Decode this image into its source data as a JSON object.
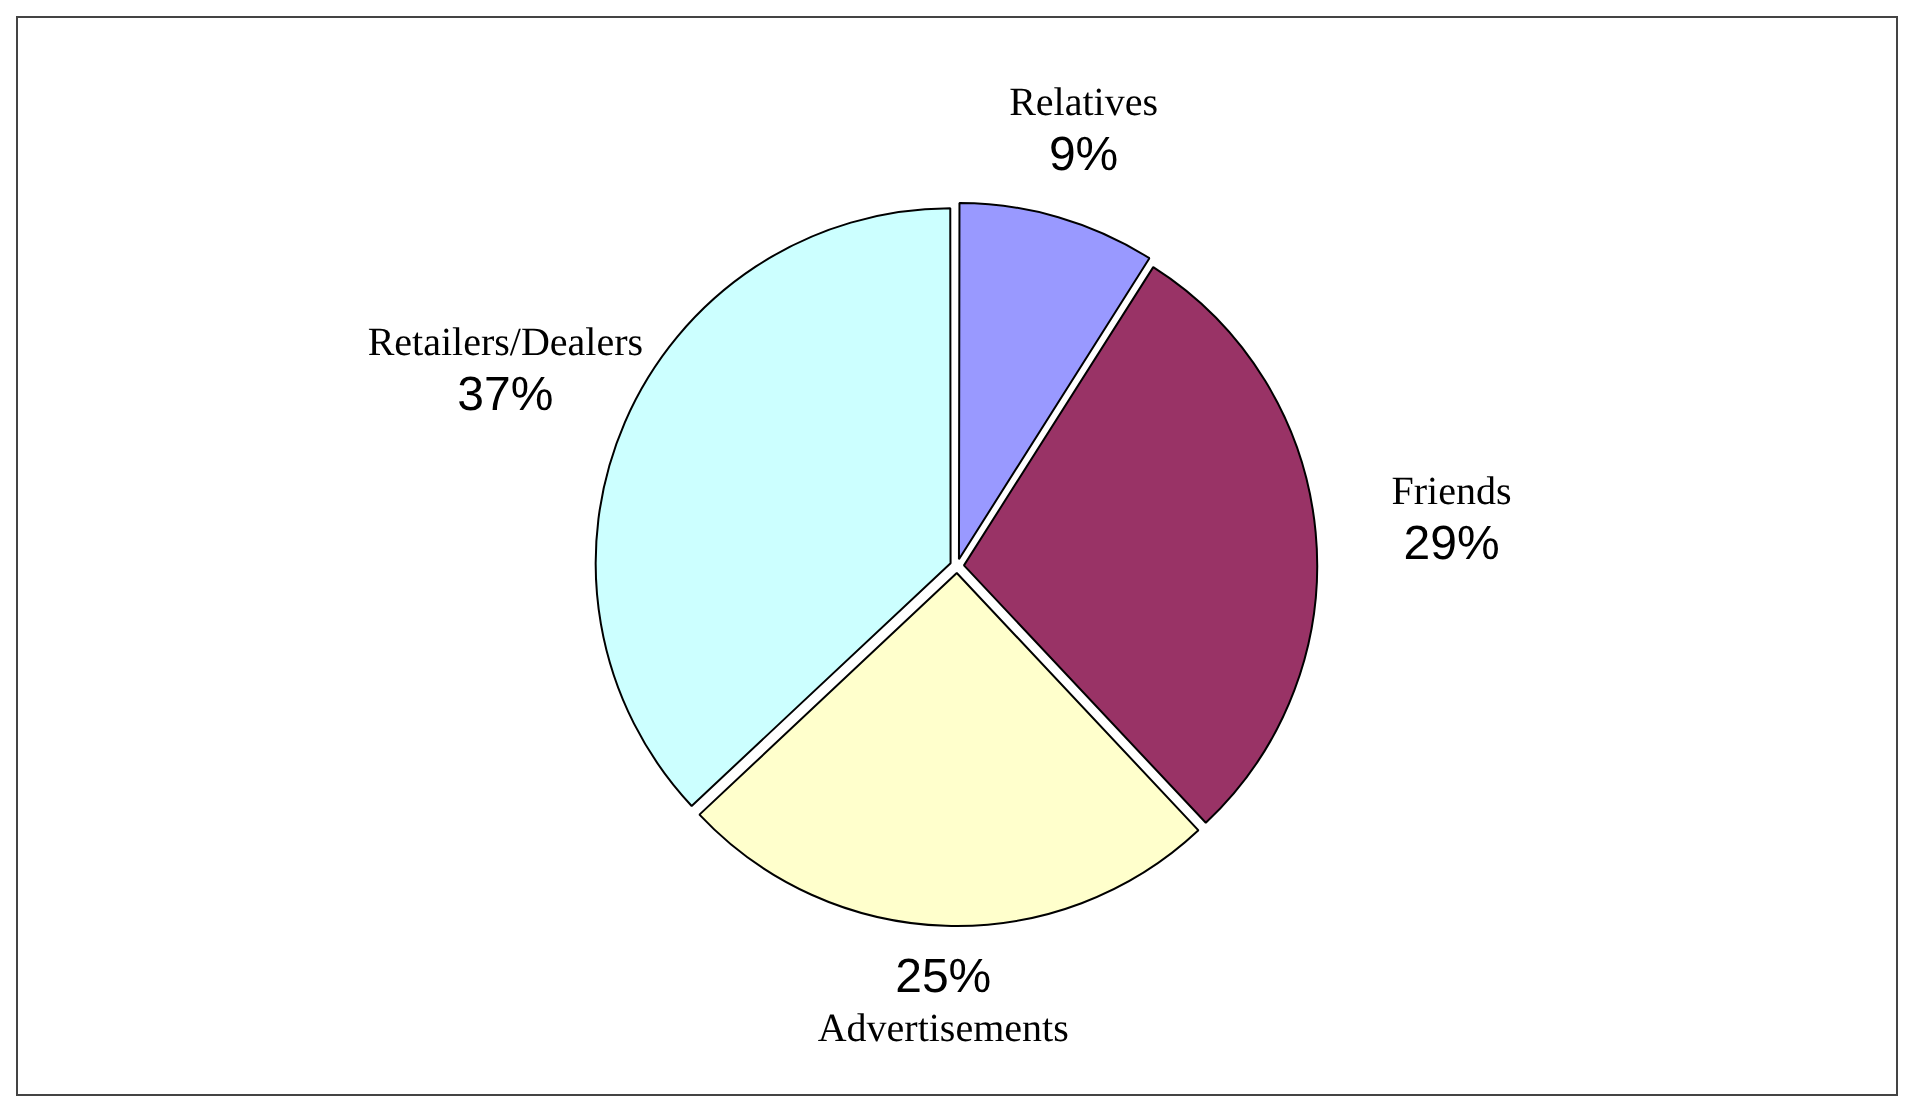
{
  "chart_data": {
    "type": "pie",
    "categories": [
      "Relatives",
      "Friends",
      "Advertisements",
      "Retailers/Dealers"
    ],
    "values": [
      9,
      29,
      25,
      37
    ],
    "colors": [
      "#9999ff",
      "#993366",
      "#ffffcc",
      "#ccffff"
    ],
    "value_labels": [
      "9%",
      "29%",
      "25%",
      "37%"
    ],
    "legend": false
  }
}
